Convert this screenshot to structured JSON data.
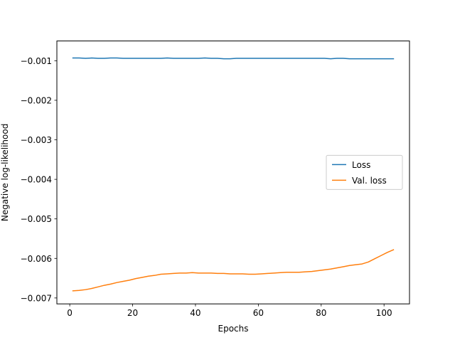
{
  "chart_data": {
    "type": "line",
    "title": "",
    "xlabel": "Epochs",
    "ylabel": "Negative log-likelihood",
    "xlim": [
      -4.1,
      108.1
    ],
    "ylim": [
      -0.00715,
      -0.0005
    ],
    "xticks": [
      0,
      20,
      40,
      60,
      80,
      100
    ],
    "xtick_labels": [
      "0",
      "20",
      "40",
      "60",
      "80",
      "100"
    ],
    "yticks": [
      -0.001,
      -0.002,
      -0.003,
      -0.004,
      -0.005,
      -0.006,
      -0.007
    ],
    "ytick_labels": [
      "−0.001",
      "−0.002",
      "−0.003",
      "−0.004",
      "−0.005",
      "−0.006",
      "−0.007"
    ],
    "grid": false,
    "legend_position": "center-right",
    "series": [
      {
        "name": "Loss",
        "color": "#1f77b4",
        "x": [
          1,
          3,
          5,
          7,
          9,
          11,
          13,
          15,
          17,
          19,
          21,
          23,
          25,
          27,
          29,
          31,
          33,
          35,
          37,
          39,
          41,
          43,
          45,
          47,
          49,
          51,
          53,
          55,
          57,
          59,
          61,
          63,
          65,
          67,
          69,
          71,
          73,
          75,
          77,
          79,
          81,
          83,
          85,
          87,
          89,
          91,
          93,
          95,
          97,
          99,
          101,
          103
        ],
        "y": [
          -0.00093,
          -0.00093,
          -0.00094,
          -0.00093,
          -0.00094,
          -0.00094,
          -0.00093,
          -0.00093,
          -0.00094,
          -0.00094,
          -0.00094,
          -0.00094,
          -0.00094,
          -0.00094,
          -0.00094,
          -0.00093,
          -0.00094,
          -0.00094,
          -0.00094,
          -0.00094,
          -0.00094,
          -0.00093,
          -0.00094,
          -0.00094,
          -0.00095,
          -0.00095,
          -0.00094,
          -0.00094,
          -0.00094,
          -0.00094,
          -0.00094,
          -0.00094,
          -0.00094,
          -0.00094,
          -0.00094,
          -0.00094,
          -0.00094,
          -0.00094,
          -0.00094,
          -0.00094,
          -0.00094,
          -0.00095,
          -0.00094,
          -0.00094,
          -0.00095,
          -0.00095,
          -0.00095,
          -0.00095,
          -0.00095,
          -0.00095,
          -0.00095,
          -0.00095
        ]
      },
      {
        "name": "Val. loss",
        "color": "#ff7f0e",
        "x": [
          1,
          3,
          5,
          7,
          9,
          11,
          13,
          15,
          17,
          19,
          21,
          23,
          25,
          27,
          29,
          31,
          33,
          35,
          37,
          39,
          41,
          43,
          45,
          47,
          49,
          51,
          53,
          55,
          57,
          59,
          61,
          63,
          65,
          67,
          69,
          71,
          73,
          75,
          77,
          79,
          81,
          83,
          85,
          87,
          89,
          91,
          93,
          95,
          97,
          99,
          101,
          103
        ],
        "y": [
          -0.00682,
          -0.00681,
          -0.00679,
          -0.00676,
          -0.00672,
          -0.00668,
          -0.00665,
          -0.00661,
          -0.00658,
          -0.00655,
          -0.00651,
          -0.00648,
          -0.00645,
          -0.00643,
          -0.0064,
          -0.00639,
          -0.00638,
          -0.00637,
          -0.00637,
          -0.00636,
          -0.00637,
          -0.00637,
          -0.00637,
          -0.00638,
          -0.00638,
          -0.00639,
          -0.00639,
          -0.00639,
          -0.0064,
          -0.0064,
          -0.00639,
          -0.00638,
          -0.00637,
          -0.00636,
          -0.00635,
          -0.00635,
          -0.00635,
          -0.00634,
          -0.00633,
          -0.00631,
          -0.00629,
          -0.00627,
          -0.00624,
          -0.00621,
          -0.00618,
          -0.00616,
          -0.00614,
          -0.00609,
          -0.00601,
          -0.00593,
          -0.00585,
          -0.00578
        ]
      }
    ]
  }
}
